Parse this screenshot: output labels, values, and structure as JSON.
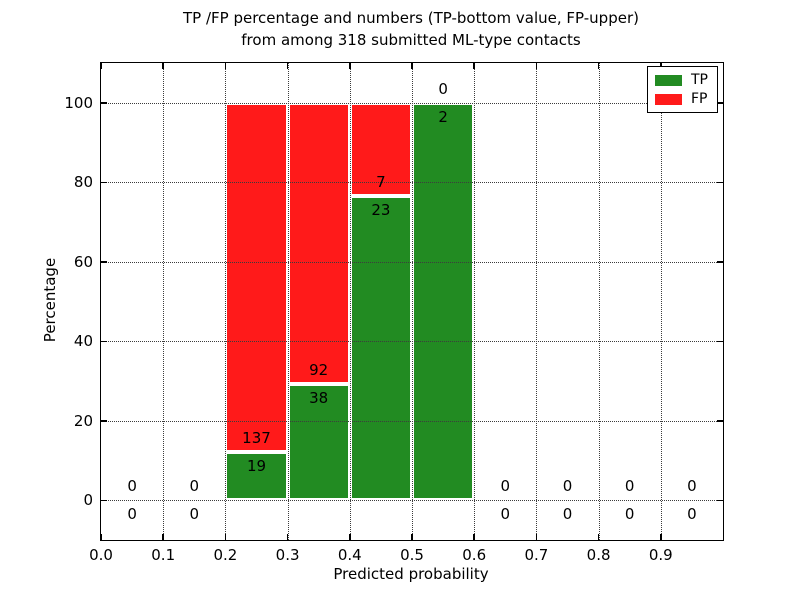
{
  "chart_data": {
    "type": "bar",
    "stacked": true,
    "title_line1": "TP /FP percentage and numbers (TP-bottom value, FP-upper)",
    "title_line2": "from among 318 submitted ML-type contacts",
    "xlabel": "Predicted probability",
    "ylabel": "Percentage",
    "xlim": [
      0.0,
      1.0
    ],
    "ylim": [
      -10,
      110
    ],
    "grid": "dotted",
    "xticks": [
      {
        "v": 0.0,
        "label": "0.0"
      },
      {
        "v": 0.1,
        "label": "0.1"
      },
      {
        "v": 0.2,
        "label": "0.2"
      },
      {
        "v": 0.3,
        "label": "0.3"
      },
      {
        "v": 0.4,
        "label": "0.4"
      },
      {
        "v": 0.5,
        "label": "0.5"
      },
      {
        "v": 0.6,
        "label": "0.6"
      },
      {
        "v": 0.7,
        "label": "0.7"
      },
      {
        "v": 0.8,
        "label": "0.8"
      },
      {
        "v": 0.9,
        "label": "0.9"
      }
    ],
    "yticks": [
      {
        "v": 0,
        "label": "0"
      },
      {
        "v": 20,
        "label": "20"
      },
      {
        "v": 40,
        "label": "40"
      },
      {
        "v": 60,
        "label": "60"
      },
      {
        "v": 80,
        "label": "80"
      },
      {
        "v": 100,
        "label": "100"
      }
    ],
    "bins": [
      {
        "range": [
          0.0,
          0.1
        ],
        "tp": 0,
        "fp": 0
      },
      {
        "range": [
          0.1,
          0.2
        ],
        "tp": 0,
        "fp": 0
      },
      {
        "range": [
          0.2,
          0.3
        ],
        "tp": 19,
        "fp": 137
      },
      {
        "range": [
          0.3,
          0.4
        ],
        "tp": 38,
        "fp": 92
      },
      {
        "range": [
          0.4,
          0.5
        ],
        "tp": 23,
        "fp": 7
      },
      {
        "range": [
          0.5,
          0.6
        ],
        "tp": 2,
        "fp": 0
      },
      {
        "range": [
          0.6,
          0.7
        ],
        "tp": 0,
        "fp": 0
      },
      {
        "range": [
          0.7,
          0.8
        ],
        "tp": 0,
        "fp": 0
      },
      {
        "range": [
          0.8,
          0.9
        ],
        "tp": 0,
        "fp": 0
      },
      {
        "range": [
          0.9,
          1.0
        ],
        "tp": 0,
        "fp": 0
      }
    ],
    "legend": {
      "position": "upper-right",
      "entries": [
        {
          "label": "TP",
          "color": "#228b22"
        },
        {
          "label": "FP",
          "color": "#ff1a1a"
        }
      ]
    },
    "colors": {
      "tp": "#228b22",
      "fp": "#ff1a1a",
      "bar_edge": "#ffffff",
      "grid": "#3c3c3c",
      "text": "#000000"
    }
  }
}
